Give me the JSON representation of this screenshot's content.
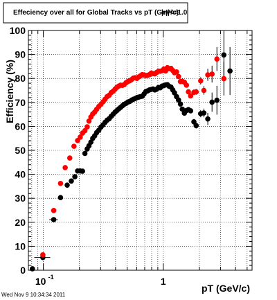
{
  "chart_data": {
    "type": "scatter",
    "title": "Effeciency over all for Global Tracks vs pT (GeV/c)",
    "overlay_text": "|η|<=1.0",
    "xlabel": "pT (GeV/c)",
    "ylabel": "Efficiency (%)",
    "x_scale": "log",
    "xlim": [
      0.075,
      5.5
    ],
    "ylim": [
      0,
      100
    ],
    "x_ticks": [
      {
        "value": 0.1,
        "base": "10",
        "exp": "-1"
      },
      {
        "value": 1,
        "base": "1",
        "exp": ""
      }
    ],
    "y_ticks": [
      0,
      10,
      20,
      30,
      40,
      50,
      60,
      70,
      80,
      90,
      100
    ],
    "grid": true,
    "legend": "none",
    "datestamp": "Wed Nov  9 10:34:34 2011",
    "series": [
      {
        "color": "#000000",
        "points": [
          [
            0.081,
            0.6,
            0.0,
            0.004
          ],
          [
            0.099,
            5.3,
            0.015,
            0.8
          ],
          [
            0.122,
            21.1,
            0.01,
            0.5
          ],
          [
            0.139,
            30.3,
            0.0,
            0.5
          ],
          [
            0.158,
            35.5,
            0.0,
            0.0
          ],
          [
            0.171,
            37.2,
            0.0,
            0.0
          ],
          [
            0.183,
            39.0,
            0.0,
            0.0
          ],
          [
            0.193,
            41.4,
            0.0,
            0.0
          ],
          [
            0.203,
            41.4,
            0.0,
            0.0
          ],
          [
            0.212,
            41.3,
            0.0,
            0.0
          ],
          [
            0.222,
            48.7,
            0.0,
            0.0
          ],
          [
            0.232,
            50.6,
            0.0,
            0.0
          ],
          [
            0.24,
            51.9,
            0.0,
            0.0
          ],
          [
            0.249,
            53.4,
            0.0,
            0.0
          ],
          [
            0.258,
            55.0,
            0.0,
            0.0
          ],
          [
            0.268,
            56.1,
            0.0,
            0.0
          ],
          [
            0.278,
            57.4,
            0.0,
            0.0
          ],
          [
            0.29,
            58.4,
            0.0,
            0.0
          ],
          [
            0.302,
            59.7,
            0.0,
            0.0
          ],
          [
            0.314,
            60.6,
            0.0,
            0.0
          ],
          [
            0.327,
            61.7,
            0.0,
            0.0
          ],
          [
            0.34,
            62.6,
            0.0,
            0.0
          ],
          [
            0.354,
            63.2,
            0.0,
            0.0
          ],
          [
            0.368,
            64.2,
            0.0,
            0.0
          ],
          [
            0.382,
            65.1,
            0.0,
            0.0
          ],
          [
            0.396,
            65.9,
            0.0,
            0.0
          ],
          [
            0.41,
            66.6,
            0.0,
            0.0
          ],
          [
            0.425,
            67.3,
            0.0,
            0.0
          ],
          [
            0.44,
            67.9,
            0.0,
            0.0
          ],
          [
            0.456,
            68.6,
            0.0,
            0.0
          ],
          [
            0.472,
            69.2,
            0.0,
            0.0
          ],
          [
            0.489,
            69.6,
            0.0,
            0.0
          ],
          [
            0.506,
            70.1,
            0.0,
            0.0
          ],
          [
            0.524,
            70.4,
            0.0,
            0.0
          ],
          [
            0.543,
            70.9,
            0.0,
            0.0
          ],
          [
            0.562,
            71.3,
            0.0,
            0.0
          ],
          [
            0.582,
            71.6,
            0.0,
            0.0
          ],
          [
            0.602,
            72.0,
            0.0,
            0.0
          ],
          [
            0.623,
            72.2,
            0.0,
            0.0
          ],
          [
            0.645,
            72.4,
            0.0,
            0.0
          ],
          [
            0.668,
            72.6,
            0.0,
            0.0
          ],
          [
            0.691,
            73.5,
            0.0,
            0.0
          ],
          [
            0.715,
            74.5,
            0.0,
            0.0
          ],
          [
            0.74,
            74.8,
            0.0,
            0.0
          ],
          [
            0.766,
            75.2,
            0.0,
            0.0
          ],
          [
            0.793,
            75.4,
            0.0,
            0.0
          ],
          [
            0.821,
            75.6,
            0.0,
            0.0
          ],
          [
            0.85,
            75.2,
            0.0,
            0.0
          ],
          [
            0.88,
            75.5,
            0.0,
            0.0
          ],
          [
            0.911,
            76.2,
            0.0,
            0.0
          ],
          [
            0.943,
            76.1,
            0.0,
            0.0
          ],
          [
            0.976,
            76.8,
            0.0,
            0.0
          ],
          [
            1.01,
            77.0,
            0.0,
            0.0
          ],
          [
            1.045,
            77.3,
            0.0,
            0.0
          ],
          [
            1.082,
            77.4,
            0.0,
            0.0
          ],
          [
            1.12,
            76.7,
            0.0,
            0.0
          ],
          [
            1.16,
            76.4,
            0.0,
            0.0
          ],
          [
            1.2,
            75.2,
            0.0,
            0.0
          ],
          [
            1.24,
            74.0,
            0.0,
            0.0
          ],
          [
            1.29,
            72.4,
            0.0,
            0.0
          ],
          [
            1.34,
            71.0,
            0.0,
            0.0
          ],
          [
            1.39,
            69.3,
            0.0,
            0.0
          ],
          [
            1.44,
            67.2,
            0.0,
            0.0
          ],
          [
            1.5,
            65.5,
            0.0,
            0.0
          ],
          [
            1.56,
            66.6,
            0.0,
            0.0
          ],
          [
            1.62,
            67.0,
            0.0,
            0.0
          ],
          [
            1.69,
            66.5,
            0.0,
            0.0
          ],
          [
            1.8,
            61.9,
            0.0,
            1.2
          ],
          [
            1.88,
            60.3,
            0.0,
            1.2
          ],
          [
            2.05,
            65.3,
            0.0,
            1.5
          ],
          [
            2.18,
            65.6,
            0.0,
            1.8
          ],
          [
            2.35,
            63.1,
            0.0,
            2.5
          ],
          [
            2.55,
            70.1,
            0.0,
            4.0
          ],
          [
            2.8,
            70.9,
            0.0,
            6.0
          ],
          [
            3.2,
            89.8,
            0.0,
            10.0
          ],
          [
            3.6,
            83.1,
            0.0,
            10.0
          ]
        ]
      },
      {
        "color": "#ff0000",
        "points": [
          [
            0.099,
            6.4,
            0.0,
            0.8
          ],
          [
            0.122,
            24.9,
            0.0,
            0.5
          ],
          [
            0.139,
            36.2,
            0.0,
            0.0
          ],
          [
            0.152,
            42.8,
            0.0,
            0.0
          ],
          [
            0.166,
            46.8,
            0.0,
            0.0
          ],
          [
            0.18,
            51.7,
            0.0,
            0.0
          ],
          [
            0.193,
            54.1,
            0.0,
            0.0
          ],
          [
            0.203,
            55.5,
            0.0,
            0.0
          ],
          [
            0.212,
            57.2,
            0.0,
            0.0
          ],
          [
            0.222,
            58.2,
            0.0,
            0.0
          ],
          [
            0.232,
            59.8,
            0.0,
            0.0
          ],
          [
            0.24,
            62.2,
            0.0,
            0.0
          ],
          [
            0.249,
            63.9,
            0.0,
            0.0
          ],
          [
            0.258,
            65.2,
            0.0,
            0.0
          ],
          [
            0.268,
            66.0,
            0.0,
            0.0
          ],
          [
            0.278,
            67.1,
            0.0,
            0.0
          ],
          [
            0.29,
            68.3,
            0.0,
            0.0
          ],
          [
            0.302,
            69.2,
            0.0,
            0.0
          ],
          [
            0.314,
            70.2,
            0.0,
            0.0
          ],
          [
            0.327,
            71.3,
            0.0,
            0.0
          ],
          [
            0.34,
            72.4,
            0.0,
            0.0
          ],
          [
            0.354,
            73.0,
            0.0,
            0.0
          ],
          [
            0.368,
            74.1,
            0.0,
            0.0
          ],
          [
            0.382,
            74.7,
            0.0,
            0.0
          ],
          [
            0.396,
            75.5,
            0.0,
            0.0
          ],
          [
            0.41,
            76.3,
            0.0,
            0.0
          ],
          [
            0.425,
            76.8,
            0.0,
            0.0
          ],
          [
            0.44,
            77.2,
            0.0,
            0.0
          ],
          [
            0.456,
            77.1,
            0.0,
            0.0
          ],
          [
            0.472,
            77.4,
            0.0,
            0.0
          ],
          [
            0.489,
            78.2,
            0.0,
            0.0
          ],
          [
            0.506,
            78.7,
            0.0,
            0.0
          ],
          [
            0.524,
            79.0,
            0.0,
            0.0
          ],
          [
            0.543,
            79.5,
            0.0,
            0.0
          ],
          [
            0.562,
            80.1,
            0.0,
            0.0
          ],
          [
            0.582,
            80.3,
            0.0,
            0.0
          ],
          [
            0.602,
            80.0,
            0.0,
            0.0
          ],
          [
            0.623,
            80.6,
            0.0,
            0.0
          ],
          [
            0.645,
            81.1,
            0.0,
            0.0
          ],
          [
            0.668,
            81.6,
            0.0,
            0.0
          ],
          [
            0.691,
            81.4,
            0.0,
            0.0
          ],
          [
            0.715,
            81.2,
            0.0,
            0.0
          ],
          [
            0.74,
            81.3,
            0.0,
            0.0
          ],
          [
            0.766,
            81.6,
            0.0,
            0.0
          ],
          [
            0.793,
            82.2,
            0.0,
            0.0
          ],
          [
            0.821,
            82.0,
            0.0,
            0.0
          ],
          [
            0.85,
            81.9,
            0.0,
            0.0
          ],
          [
            0.88,
            82.5,
            0.0,
            0.0
          ],
          [
            0.911,
            83.0,
            0.0,
            0.0
          ],
          [
            0.943,
            83.0,
            0.0,
            0.0
          ],
          [
            0.976,
            83.2,
            0.0,
            0.0
          ],
          [
            1.01,
            83.9,
            0.0,
            0.0
          ],
          [
            1.045,
            83.1,
            0.0,
            0.0
          ],
          [
            1.082,
            84.5,
            0.0,
            0.0
          ],
          [
            1.12,
            84.1,
            0.0,
            0.0
          ],
          [
            1.16,
            84.2,
            0.0,
            0.0
          ],
          [
            1.2,
            83.3,
            0.0,
            0.0
          ],
          [
            1.24,
            82.4,
            0.0,
            0.0
          ],
          [
            1.29,
            82.7,
            0.0,
            0.0
          ],
          [
            1.34,
            80.8,
            0.0,
            0.0
          ],
          [
            1.39,
            78.7,
            0.0,
            0.0
          ],
          [
            1.44,
            78.8,
            0.0,
            0.0
          ],
          [
            1.5,
            78.4,
            0.0,
            0.0
          ],
          [
            1.56,
            77.2,
            0.0,
            0.0
          ],
          [
            1.62,
            74.4,
            0.0,
            0.0
          ],
          [
            1.69,
            72.7,
            0.0,
            0.0
          ],
          [
            1.8,
            74.2,
            0.0,
            1.2
          ],
          [
            1.88,
            74.4,
            0.0,
            1.2
          ],
          [
            2.05,
            79.0,
            0.0,
            1.5
          ],
          [
            2.18,
            75.0,
            0.0,
            1.8
          ],
          [
            2.35,
            81.5,
            0.0,
            2.5
          ],
          [
            2.55,
            81.8,
            0.0,
            3.5
          ],
          [
            2.8,
            88.1,
            0.0,
            5.0
          ],
          [
            3.2,
            79.9,
            0.0,
            7.0
          ]
        ]
      }
    ]
  }
}
